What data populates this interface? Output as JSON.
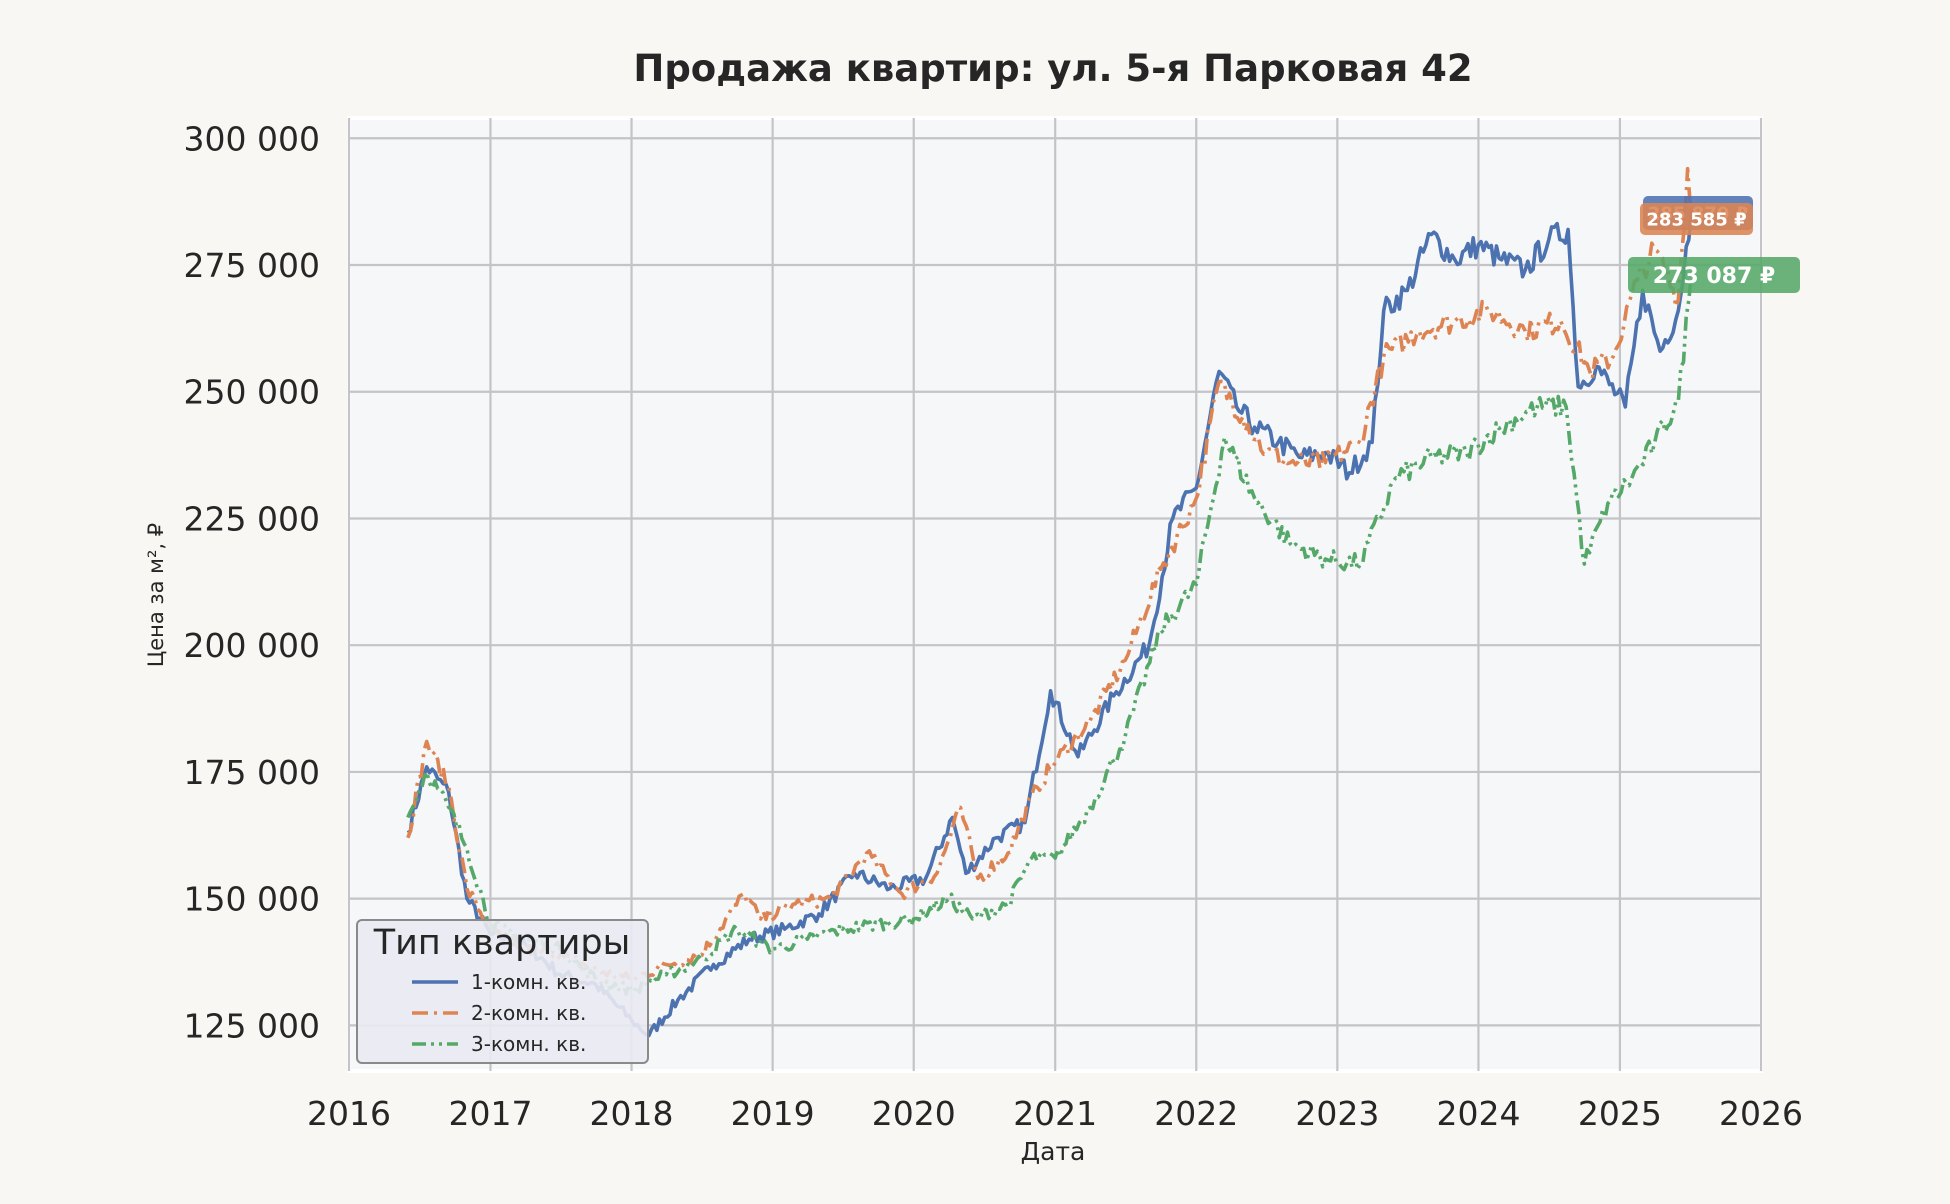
{
  "chart_data": {
    "type": "line",
    "title": "Продажа квартир: ул. 5-я Парковая 42",
    "xlabel": "Дата",
    "ylabel": "Цена за м², ₽",
    "xlim": [
      "2016-01-01",
      "2026-01-01"
    ],
    "ylim": [
      116000,
      304000
    ],
    "x_ticks": [
      "2016",
      "2017",
      "2018",
      "2019",
      "2020",
      "2021",
      "2022",
      "2023",
      "2024",
      "2025",
      "2026"
    ],
    "y_ticks": [
      {
        "value": 125000,
        "label": "125 000"
      },
      {
        "value": 150000,
        "label": "150 000"
      },
      {
        "value": 175000,
        "label": "175 000"
      },
      {
        "value": 200000,
        "label": "200 000"
      },
      {
        "value": 225000,
        "label": "225 000"
      },
      {
        "value": 250000,
        "label": "250 000"
      },
      {
        "value": 275000,
        "label": "275 000"
      },
      {
        "value": 300000,
        "label": "300 000"
      }
    ],
    "grid": true,
    "legend": {
      "title": "Тип квартиры",
      "position": "bottom-left"
    },
    "series": [
      {
        "name": "1-комн. кв.",
        "color": "#4c72b0",
        "dash": "solid",
        "end_label": "285 870 ₽",
        "points": [
          [
            "2016-06-01",
            163000
          ],
          [
            "2016-07-20",
            176000
          ],
          [
            "2016-09-15",
            171000
          ],
          [
            "2016-11-01",
            150000
          ],
          [
            "2017-01-01",
            143000
          ],
          [
            "2017-04-01",
            141000
          ],
          [
            "2017-07-01",
            135000
          ],
          [
            "2017-10-01",
            133000
          ],
          [
            "2018-01-01",
            126000
          ],
          [
            "2018-02-15",
            123000
          ],
          [
            "2018-05-01",
            130000
          ],
          [
            "2018-08-01",
            137000
          ],
          [
            "2018-11-01",
            142000
          ],
          [
            "2019-02-01",
            144000
          ],
          [
            "2019-05-01",
            147000
          ],
          [
            "2019-08-01",
            155000
          ],
          [
            "2019-11-01",
            152000
          ],
          [
            "2020-02-01",
            154000
          ],
          [
            "2020-04-10",
            166000
          ],
          [
            "2020-05-15",
            155000
          ],
          [
            "2020-08-01",
            162000
          ],
          [
            "2020-10-15",
            165000
          ],
          [
            "2020-12-20",
            191000
          ],
          [
            "2021-03-01",
            178000
          ],
          [
            "2021-06-01",
            190000
          ],
          [
            "2021-09-01",
            200000
          ],
          [
            "2021-11-01",
            225000
          ],
          [
            "2022-01-01",
            231000
          ],
          [
            "2022-03-01",
            254000
          ],
          [
            "2022-04-15",
            247000
          ],
          [
            "2022-06-01",
            243000
          ],
          [
            "2022-08-01",
            240000
          ],
          [
            "2022-10-01",
            237000
          ],
          [
            "2022-12-01",
            238000
          ],
          [
            "2023-02-01",
            234000
          ],
          [
            "2023-04-01",
            240000
          ],
          [
            "2023-05-01",
            266000
          ],
          [
            "2023-07-01",
            270000
          ],
          [
            "2023-09-01",
            281000
          ],
          [
            "2023-11-01",
            276000
          ],
          [
            "2024-01-01",
            279000
          ],
          [
            "2024-03-01",
            276000
          ],
          [
            "2024-05-01",
            274000
          ],
          [
            "2024-07-01",
            280000
          ],
          [
            "2024-08-20",
            282000
          ],
          [
            "2024-09-15",
            251000
          ],
          [
            "2024-11-01",
            255000
          ],
          [
            "2025-01-15",
            247000
          ],
          [
            "2025-03-01",
            270000
          ],
          [
            "2025-04-15",
            258000
          ],
          [
            "2025-06-01",
            266000
          ],
          [
            "2025-07-05",
            285870
          ]
        ]
      },
      {
        "name": "2-комн. кв.",
        "color": "#dd8452",
        "dash": "dashdot",
        "end_label": "283 585 ₽",
        "points": [
          [
            "2016-06-01",
            162000
          ],
          [
            "2016-07-20",
            181000
          ],
          [
            "2016-09-15",
            172000
          ],
          [
            "2016-11-01",
            152000
          ],
          [
            "2017-01-01",
            144000
          ],
          [
            "2017-04-01",
            140000
          ],
          [
            "2017-07-01",
            139000
          ],
          [
            "2017-10-01",
            136000
          ],
          [
            "2018-01-01",
            134000
          ],
          [
            "2018-04-01",
            137000
          ],
          [
            "2018-07-01",
            139000
          ],
          [
            "2018-10-20",
            151000
          ],
          [
            "2018-12-01",
            146000
          ],
          [
            "2019-03-01",
            149000
          ],
          [
            "2019-06-01",
            150000
          ],
          [
            "2019-09-01",
            159000
          ],
          [
            "2019-12-01",
            151000
          ],
          [
            "2020-03-01",
            155000
          ],
          [
            "2020-05-01",
            168000
          ],
          [
            "2020-06-15",
            154000
          ],
          [
            "2020-09-01",
            159000
          ],
          [
            "2020-11-15",
            172000
          ],
          [
            "2021-01-01",
            177000
          ],
          [
            "2021-04-01",
            185000
          ],
          [
            "2021-07-01",
            197000
          ],
          [
            "2021-10-01",
            215000
          ],
          [
            "2022-01-01",
            229000
          ],
          [
            "2022-03-01",
            252000
          ],
          [
            "2022-05-01",
            245000
          ],
          [
            "2022-07-01",
            238000
          ],
          [
            "2022-09-01",
            236000
          ],
          [
            "2022-12-01",
            236000
          ],
          [
            "2023-03-01",
            240000
          ],
          [
            "2023-05-01",
            257000
          ],
          [
            "2023-08-01",
            262000
          ],
          [
            "2023-11-01",
            264000
          ],
          [
            "2024-02-01",
            266000
          ],
          [
            "2024-05-01",
            262000
          ],
          [
            "2024-08-01",
            264000
          ],
          [
            "2024-10-15",
            254000
          ],
          [
            "2024-12-15",
            257000
          ],
          [
            "2025-02-15",
            272000
          ],
          [
            "2025-04-01",
            278000
          ],
          [
            "2025-06-01",
            268000
          ],
          [
            "2025-06-25",
            294000
          ],
          [
            "2025-07-05",
            283585
          ]
        ]
      },
      {
        "name": "3-комн. кв.",
        "color": "#55a868",
        "dash": "dashdotdot",
        "end_label": "273 087 ₽",
        "points": [
          [
            "2016-06-01",
            166000
          ],
          [
            "2016-07-20",
            175000
          ],
          [
            "2016-09-15",
            168000
          ],
          [
            "2016-11-01",
            160000
          ],
          [
            "2017-01-01",
            145000
          ],
          [
            "2017-04-01",
            142000
          ],
          [
            "2017-07-01",
            140000
          ],
          [
            "2017-10-01",
            134000
          ],
          [
            "2018-01-01",
            132000
          ],
          [
            "2018-04-01",
            135000
          ],
          [
            "2018-07-01",
            138000
          ],
          [
            "2018-10-01",
            144000
          ],
          [
            "2019-01-01",
            140000
          ],
          [
            "2019-04-01",
            142000
          ],
          [
            "2019-07-01",
            144000
          ],
          [
            "2019-10-01",
            145000
          ],
          [
            "2020-01-01",
            146000
          ],
          [
            "2020-04-01",
            150000
          ],
          [
            "2020-06-01",
            146000
          ],
          [
            "2020-09-01",
            149000
          ],
          [
            "2020-11-01",
            158000
          ],
          [
            "2021-01-01",
            158000
          ],
          [
            "2021-04-01",
            168000
          ],
          [
            "2021-07-01",
            182000
          ],
          [
            "2021-10-01",
            203000
          ],
          [
            "2022-01-01",
            212000
          ],
          [
            "2022-03-15",
            241000
          ],
          [
            "2022-06-01",
            229000
          ],
          [
            "2022-09-01",
            220000
          ],
          [
            "2022-12-01",
            217000
          ],
          [
            "2023-03-01",
            216000
          ],
          [
            "2023-06-01",
            233000
          ],
          [
            "2023-09-01",
            237000
          ],
          [
            "2023-12-01",
            238000
          ],
          [
            "2024-03-01",
            243000
          ],
          [
            "2024-06-01",
            247000
          ],
          [
            "2024-08-15",
            247000
          ],
          [
            "2024-10-01",
            216000
          ],
          [
            "2024-12-01",
            228000
          ],
          [
            "2025-02-01",
            233000
          ],
          [
            "2025-04-01",
            240000
          ],
          [
            "2025-06-01",
            248000
          ],
          [
            "2025-07-05",
            273087
          ]
        ]
      }
    ]
  }
}
